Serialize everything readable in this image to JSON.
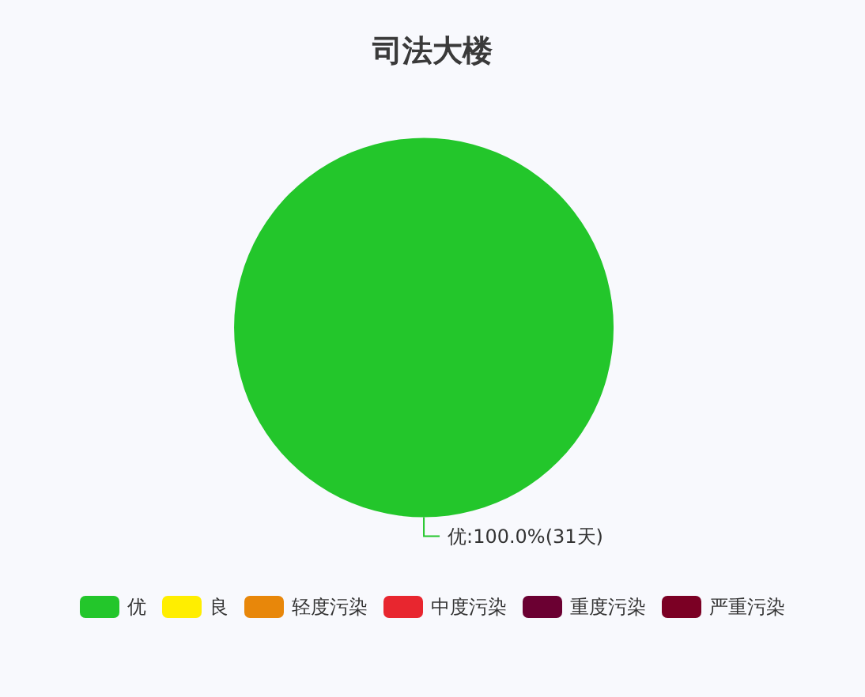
{
  "chart_data": {
    "type": "pie",
    "title": "司法大楼",
    "categories": [
      "优",
      "良",
      "轻度污染",
      "中度污染",
      "重度污染",
      "严重污染"
    ],
    "values": [
      31,
      0,
      0,
      0,
      0,
      0
    ],
    "colors": [
      "#23c62b",
      "#ffee00",
      "#e8870a",
      "#e8262f",
      "#6b0032",
      "#7b0024"
    ],
    "value_labels": [
      "优:100.0%(31天)",
      null,
      null,
      null,
      null,
      null
    ],
    "legend": "bottom"
  }
}
